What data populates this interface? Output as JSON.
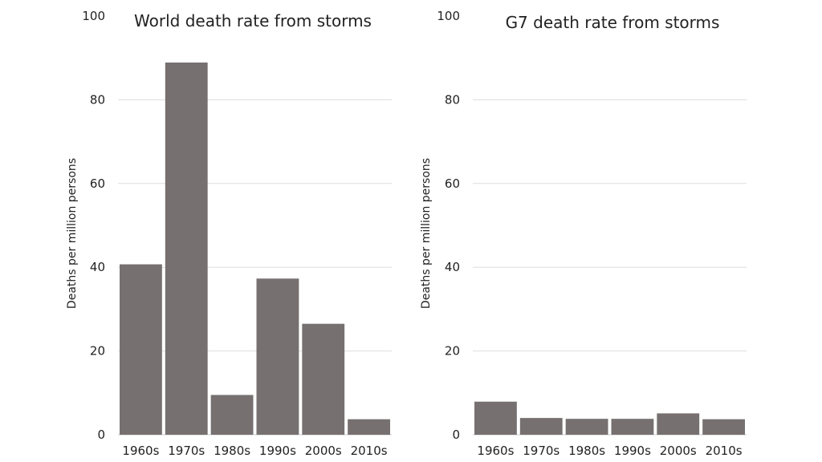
{
  "chart_data": [
    {
      "type": "bar",
      "title": "World death rate from storms",
      "ylabel": "Deaths per million persons",
      "xlabel": "",
      "categories": [
        "1960s",
        "1970s",
        "1980s",
        "1990s",
        "2000s",
        "2010s"
      ],
      "values": [
        40.7,
        88.9,
        9.5,
        37.3,
        26.5,
        3.7
      ],
      "ylim": [
        0,
        100
      ],
      "yticks": [
        0,
        20,
        40,
        60,
        80,
        100
      ],
      "grid": true,
      "color": "#767070"
    },
    {
      "type": "bar",
      "title": "G7 death rate from storms",
      "ylabel": "Deaths per million persons",
      "xlabel": "",
      "categories": [
        "1960s",
        "1970s",
        "1980s",
        "1990s",
        "2000s",
        "2010s"
      ],
      "values": [
        7.9,
        4.0,
        3.8,
        3.8,
        5.1,
        3.7
      ],
      "ylim": [
        0,
        100
      ],
      "yticks": [
        0,
        20,
        40,
        60,
        80,
        100
      ],
      "grid": true,
      "color": "#767070"
    }
  ]
}
